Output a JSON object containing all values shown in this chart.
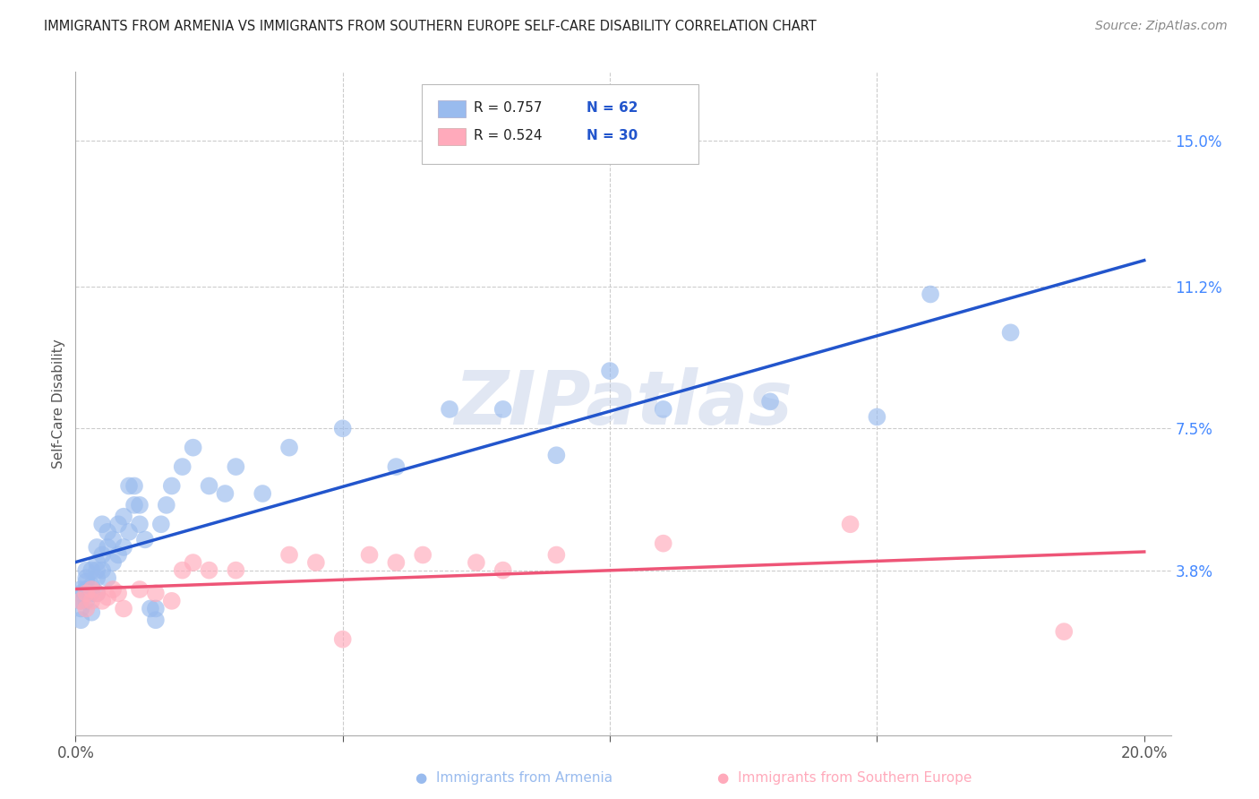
{
  "title": "IMMIGRANTS FROM ARMENIA VS IMMIGRANTS FROM SOUTHERN EUROPE SELF-CARE DISABILITY CORRELATION CHART",
  "source": "Source: ZipAtlas.com",
  "ylabel": "Self-Care Disability",
  "ytick_labels": [
    "15.0%",
    "11.2%",
    "7.5%",
    "3.8%"
  ],
  "ytick_values": [
    0.15,
    0.112,
    0.075,
    0.038
  ],
  "xlim": [
    0.0,
    0.205
  ],
  "ylim": [
    -0.005,
    0.168
  ],
  "series1_color": "#99BBEE",
  "series2_color": "#FFAABB",
  "series1_line_color": "#2255CC",
  "series2_line_color": "#EE5577",
  "series1_label": "Immigrants from Armenia",
  "series2_label": "Immigrants from Southern Europe",
  "legend_r1": "R = 0.757",
  "legend_n1": "N = 62",
  "legend_r2": "R = 0.524",
  "legend_n2": "N = 30",
  "watermark": "ZIPatlas",
  "background_color": "#ffffff",
  "grid_color": "#cccccc",
  "series1_x": [
    0.001,
    0.001,
    0.001,
    0.001,
    0.001,
    0.002,
    0.002,
    0.002,
    0.002,
    0.002,
    0.003,
    0.003,
    0.003,
    0.003,
    0.004,
    0.004,
    0.004,
    0.004,
    0.004,
    0.005,
    0.005,
    0.005,
    0.006,
    0.006,
    0.006,
    0.007,
    0.007,
    0.008,
    0.008,
    0.009,
    0.009,
    0.01,
    0.01,
    0.011,
    0.011,
    0.012,
    0.012,
    0.013,
    0.014,
    0.015,
    0.015,
    0.016,
    0.017,
    0.018,
    0.02,
    0.022,
    0.025,
    0.028,
    0.03,
    0.035,
    0.04,
    0.05,
    0.06,
    0.07,
    0.08,
    0.09,
    0.1,
    0.11,
    0.13,
    0.15,
    0.16,
    0.175
  ],
  "series1_y": [
    0.03,
    0.033,
    0.025,
    0.028,
    0.032,
    0.035,
    0.03,
    0.038,
    0.033,
    0.036,
    0.034,
    0.038,
    0.032,
    0.027,
    0.04,
    0.038,
    0.044,
    0.032,
    0.036,
    0.042,
    0.038,
    0.05,
    0.048,
    0.044,
    0.036,
    0.04,
    0.046,
    0.042,
    0.05,
    0.044,
    0.052,
    0.048,
    0.06,
    0.055,
    0.06,
    0.05,
    0.055,
    0.046,
    0.028,
    0.025,
    0.028,
    0.05,
    0.055,
    0.06,
    0.065,
    0.07,
    0.06,
    0.058,
    0.065,
    0.058,
    0.07,
    0.075,
    0.065,
    0.08,
    0.08,
    0.068,
    0.09,
    0.08,
    0.082,
    0.078,
    0.11,
    0.1
  ],
  "series2_x": [
    0.001,
    0.002,
    0.002,
    0.003,
    0.003,
    0.004,
    0.005,
    0.006,
    0.007,
    0.008,
    0.009,
    0.012,
    0.015,
    0.018,
    0.02,
    0.022,
    0.025,
    0.03,
    0.04,
    0.045,
    0.05,
    0.055,
    0.06,
    0.065,
    0.075,
    0.08,
    0.09,
    0.11,
    0.145,
    0.185
  ],
  "series2_y": [
    0.03,
    0.028,
    0.032,
    0.03,
    0.033,
    0.032,
    0.03,
    0.031,
    0.033,
    0.032,
    0.028,
    0.033,
    0.032,
    0.03,
    0.038,
    0.04,
    0.038,
    0.038,
    0.042,
    0.04,
    0.02,
    0.042,
    0.04,
    0.042,
    0.04,
    0.038,
    0.042,
    0.045,
    0.05,
    0.022
  ]
}
